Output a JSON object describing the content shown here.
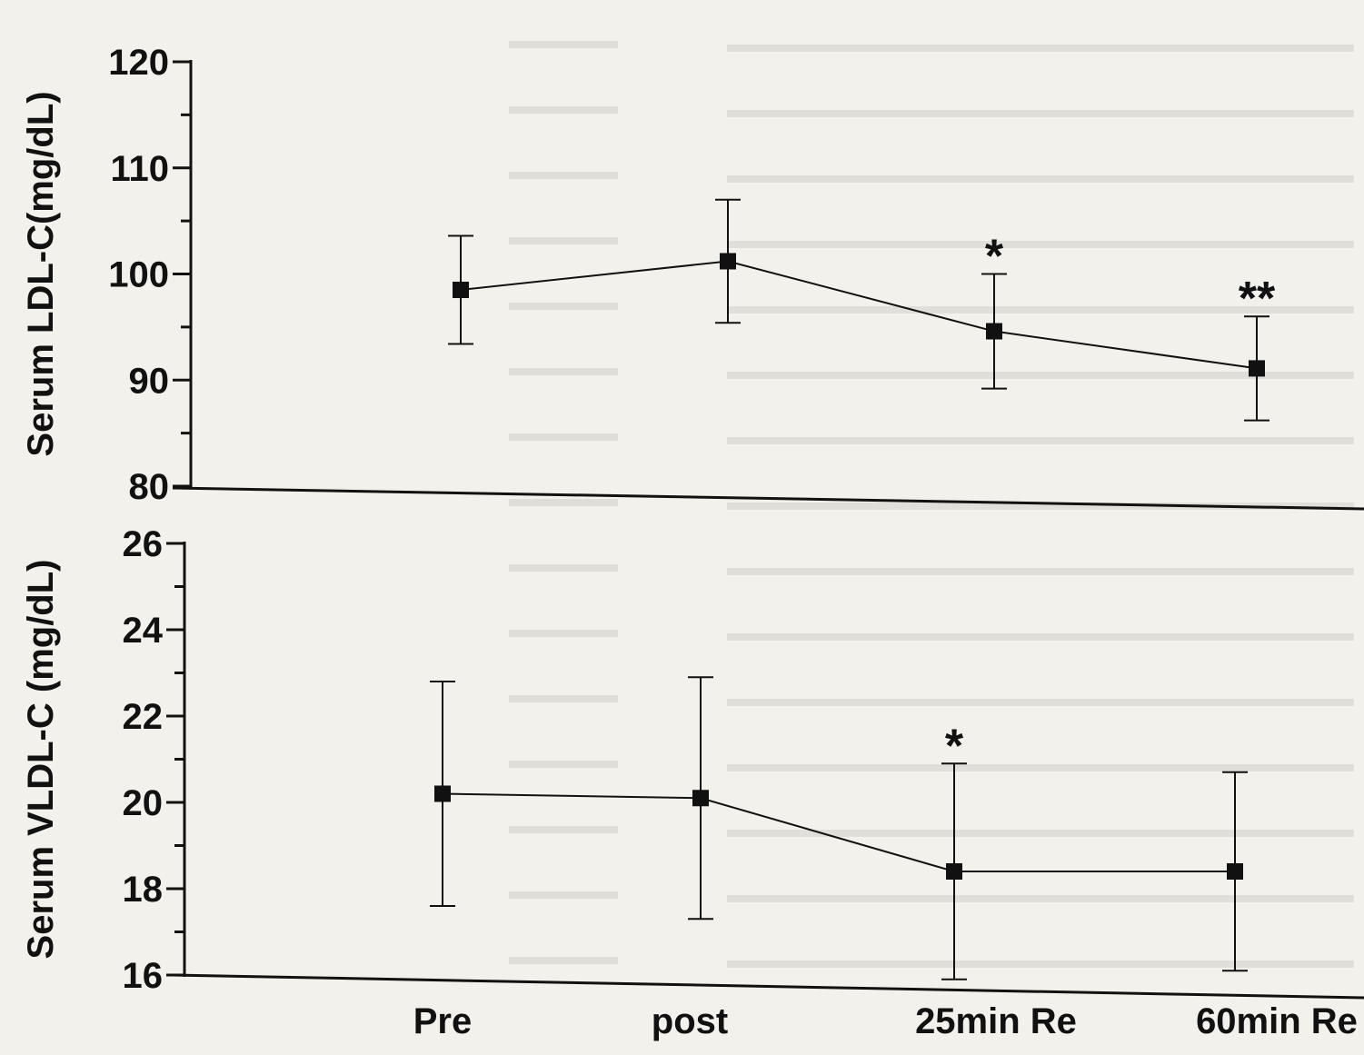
{
  "chart_data": [
    {
      "type": "line",
      "ylabel": "Serum LDL-C(mg/dL)",
      "ylim": [
        80,
        120
      ],
      "yticks": [
        80,
        90,
        100,
        110,
        120
      ],
      "categories": [
        "Pre",
        "post",
        "25min Re",
        "60min Re"
      ],
      "series": [
        {
          "values": [
            98.5,
            101.2,
            94.6,
            91.1
          ],
          "error": [
            5.1,
            5.8,
            5.4,
            4.9
          ]
        }
      ],
      "annotations": [
        "",
        "",
        "*",
        "**"
      ],
      "grid": false
    },
    {
      "type": "line",
      "ylabel": "Serum VLDL-C (mg/dL)",
      "ylim": [
        16,
        26
      ],
      "yticks": [
        16,
        18,
        20,
        22,
        24,
        26
      ],
      "categories": [
        "Pre",
        "post",
        "25min Re",
        "60min Re"
      ],
      "series": [
        {
          "values": [
            20.2,
            20.1,
            18.4,
            18.4
          ],
          "error": [
            2.6,
            2.8,
            2.5,
            2.3
          ]
        }
      ],
      "annotations": [
        "",
        "",
        "*",
        ""
      ],
      "grid": false
    }
  ],
  "colors": {
    "ink": "#111111",
    "paper": "#f3f1ec"
  }
}
